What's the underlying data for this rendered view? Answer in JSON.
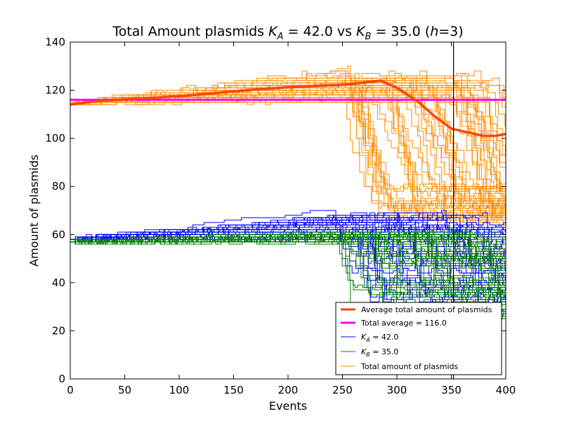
{
  "chart_data": {
    "type": "line",
    "title": "Total Amount plasmids",
    "title_math": {
      "ka_symbol": "K",
      "ka_sub": "A",
      "ka_value": " = 42.0 vs ",
      "kb_symbol": "K",
      "kb_sub": "B",
      "kb_value": " = 35.0 (",
      "h_symbol": "h",
      "h_value": "=3)"
    },
    "xlabel": "Events",
    "ylabel": "Amount of plasmids",
    "xlim": [
      0,
      400
    ],
    "ylim": [
      0,
      140
    ],
    "xticks": [
      "0",
      "50",
      "100",
      "150",
      "200",
      "250",
      "300",
      "350",
      "400"
    ],
    "yticks": [
      "0",
      "20",
      "40",
      "60",
      "80",
      "100",
      "120",
      "140"
    ],
    "grid": false,
    "legend_position": "bottom-right",
    "vertical_marker_x": 352,
    "colors": {
      "average_total": "#ff4500",
      "total_average": "#ff00ff",
      "ka": "#0000ff",
      "kb": "#008000",
      "total": "#ff8c00",
      "marker": "#000000"
    },
    "series": [
      {
        "name": "Average total amount of plasmids",
        "x": [
          0,
          25,
          50,
          75,
          100,
          125,
          150,
          175,
          200,
          225,
          250,
          270,
          285,
          300,
          320,
          335,
          350,
          365,
          380,
          390,
          400
        ],
        "y": [
          114,
          115.5,
          116.2,
          116.8,
          117.5,
          118.5,
          119.5,
          120.5,
          121.2,
          121.8,
          122.2,
          123.2,
          124,
          121,
          115,
          109,
          104,
          102.5,
          101,
          101,
          101.8
        ]
      },
      {
        "name": "Total average = 116.0",
        "x": [
          0,
          400
        ],
        "y": [
          116,
          116
        ]
      },
      {
        "name": "K_A = 42.0",
        "legend_symbol": "K",
        "legend_sub": "A",
        "legend_value": " = 42.0",
        "start_value": 58,
        "plateau_range": [
          58,
          70
        ],
        "decline_start_range": [
          240,
          380
        ],
        "end_range": [
          28,
          65
        ]
      },
      {
        "name": "K_B = 35.0",
        "legend_symbol": "K",
        "legend_sub": "B",
        "legend_value": " = 35.0",
        "start_value": 57,
        "plateau_range": [
          57,
          62
        ],
        "decline_start_range": [
          240,
          380
        ],
        "end_range": [
          25,
          60
        ]
      },
      {
        "name": "Total amount of plasmids",
        "start_value": 115,
        "plateau_range": [
          115,
          129
        ],
        "decline_start_range": [
          245,
          400
        ],
        "end_range": [
          65,
          80
        ]
      }
    ]
  },
  "legend": {
    "average_label": "Average total amount of plasmids",
    "total_average_label": "Total average = 116.0",
    "ka_symbol": "K",
    "ka_sub": "A",
    "ka_value": " = 42.0",
    "kb_symbol": "K",
    "kb_sub": "B",
    "kb_value": " = 35.0",
    "total_label": "Total amount of plasmids"
  }
}
